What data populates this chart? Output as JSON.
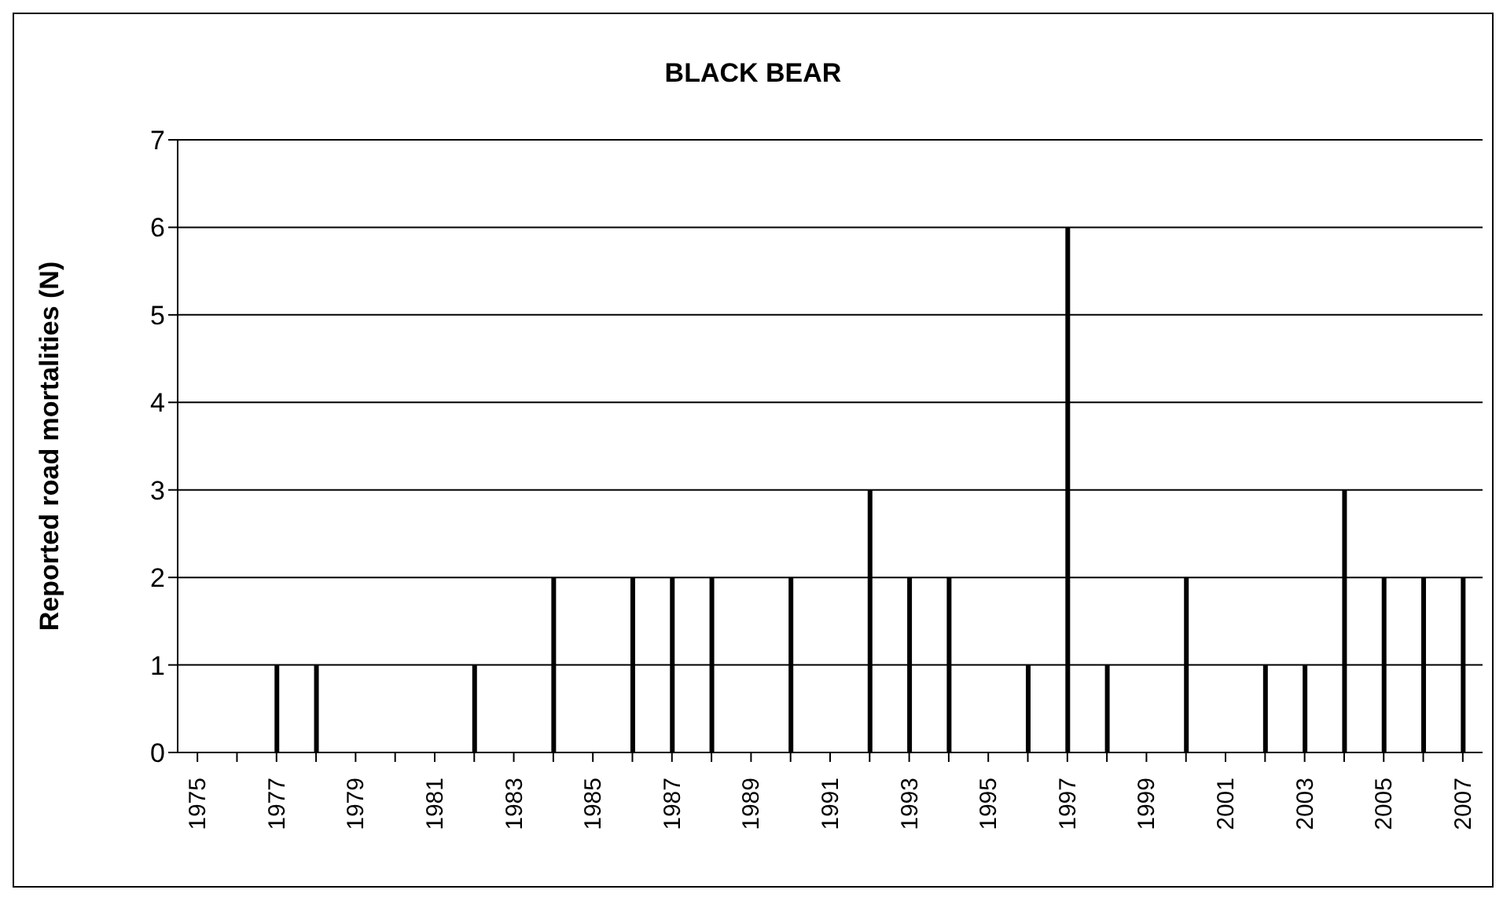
{
  "chart_data": {
    "type": "bar",
    "title": "BLACK BEAR",
    "ylabel": "Reported road mortalities (N)",
    "categories": [
      "1975",
      null,
      "1977",
      null,
      "1979",
      null,
      "1981",
      null,
      "1983",
      null,
      "1985",
      null,
      "1987",
      null,
      "1989",
      null,
      "1991",
      null,
      "1993",
      null,
      "1995",
      null,
      "1997",
      null,
      "1999",
      null,
      "2001",
      null,
      "2003",
      null,
      "2005",
      null,
      "2007"
    ],
    "values": [
      0,
      0,
      1,
      1,
      0,
      0,
      0,
      1,
      0,
      2,
      0,
      2,
      2,
      2,
      0,
      2,
      0,
      3,
      2,
      2,
      0,
      1,
      6,
      1,
      0,
      2,
      0,
      1,
      1,
      3,
      2,
      2,
      2
    ],
    "color": "#000000",
    "ylim": [
      0,
      7
    ],
    "yticks": [
      0,
      1,
      2,
      3,
      4,
      5,
      6,
      7
    ],
    "grid": "y"
  }
}
